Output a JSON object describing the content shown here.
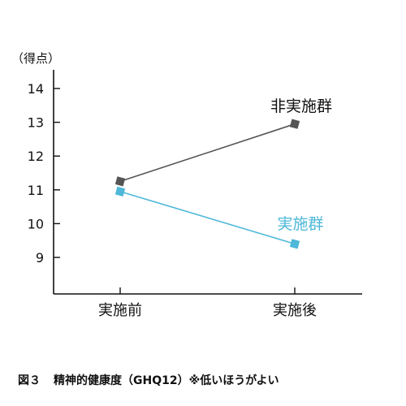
{
  "chart_data": {
    "type": "line",
    "y_unit_label": "（得点）",
    "categories": [
      "実施前",
      "実施後"
    ],
    "yticks": [
      9,
      10,
      11,
      12,
      13,
      14
    ],
    "ylim": [
      7.9,
      14.8
    ],
    "grid": false,
    "series": [
      {
        "name": "非実施群",
        "values": [
          11.25,
          12.95
        ],
        "color": "#555555",
        "marker": "square"
      },
      {
        "name": "実施群",
        "values": [
          10.95,
          9.4
        ],
        "color": "#4db8d8",
        "marker": "square"
      }
    ]
  },
  "caption": {
    "figure_number": "図３",
    "text": "精神的健康度（GHQ12）※低いほうがよい"
  }
}
